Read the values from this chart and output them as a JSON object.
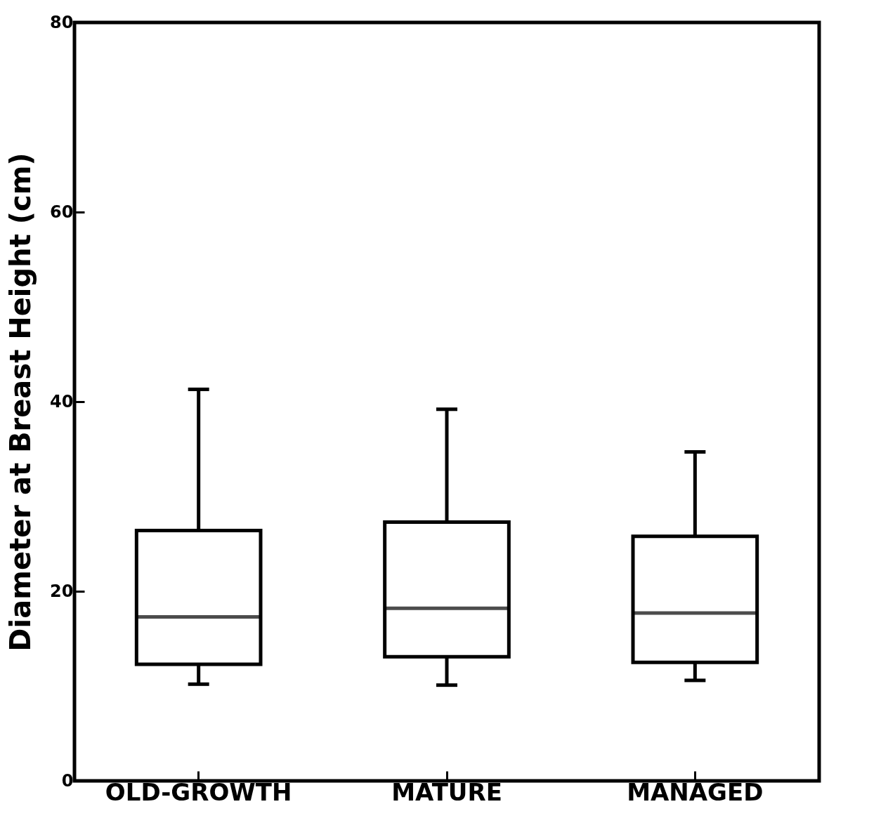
{
  "chart_data": {
    "type": "box",
    "ylabel": "Diameter at Breast Height (cm)",
    "categories": [
      "OLD-GROWTH",
      "MATURE",
      "MANAGED"
    ],
    "boxes": [
      {
        "low": 10.2,
        "q1": 12.3,
        "median": 17.3,
        "q3": 26.4,
        "high": 41.3
      },
      {
        "low": 10.1,
        "q1": 13.1,
        "median": 18.2,
        "q3": 27.3,
        "high": 39.2
      },
      {
        "low": 10.6,
        "q1": 12.5,
        "median": 17.7,
        "q3": 25.8,
        "high": 34.7
      }
    ],
    "ylim": [
      0,
      80
    ],
    "yticks": [
      0,
      20,
      40,
      60,
      80
    ],
    "grid": false
  }
}
